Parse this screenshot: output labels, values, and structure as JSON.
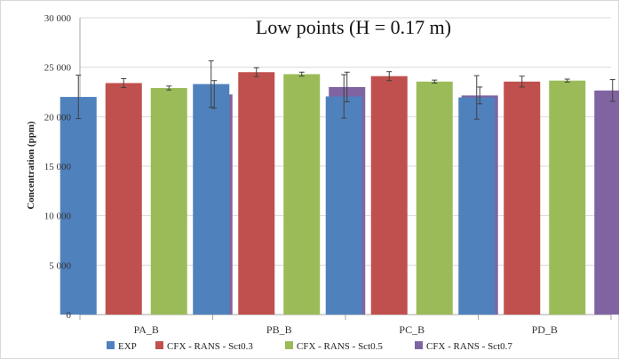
{
  "chart_data": {
    "type": "bar",
    "title": "Low points (H = 0.17 m)",
    "xlabel": "",
    "ylabel": "Concentration (ppm)",
    "ylim": [
      0,
      30000
    ],
    "yticks": [
      0,
      5000,
      10000,
      15000,
      20000,
      25000,
      30000
    ],
    "ytick_labels": [
      "0",
      "5 000",
      "10 000",
      "15 000",
      "20 000",
      "25 000",
      "30 000"
    ],
    "categories": [
      "PA_B",
      "PB_B",
      "PC_B",
      "PD_B"
    ],
    "grid": true,
    "legend_position": "bottom",
    "series": [
      {
        "name": "EXP",
        "color": "#4f81bd",
        "values": [
          22000,
          23300,
          22050,
          21950
        ],
        "errors": [
          2200,
          2350,
          2200,
          2200
        ]
      },
      {
        "name": "CFX - RANS - Sct0.3",
        "color": "#c0504d",
        "values": [
          23400,
          24500,
          24100,
          23550
        ],
        "errors": [
          450,
          450,
          450,
          550
        ]
      },
      {
        "name": "CFX - RANS - Sct0.5",
        "color": "#9bbb59",
        "values": [
          22900,
          24300,
          23550,
          23650
        ],
        "errors": [
          200,
          200,
          150,
          150
        ]
      },
      {
        "name": "CFX - RANS - Sct0.7",
        "color": "#8064a2",
        "values": [
          22250,
          23000,
          22150,
          22650
        ],
        "errors": [
          1400,
          1500,
          850,
          1100
        ]
      }
    ]
  }
}
